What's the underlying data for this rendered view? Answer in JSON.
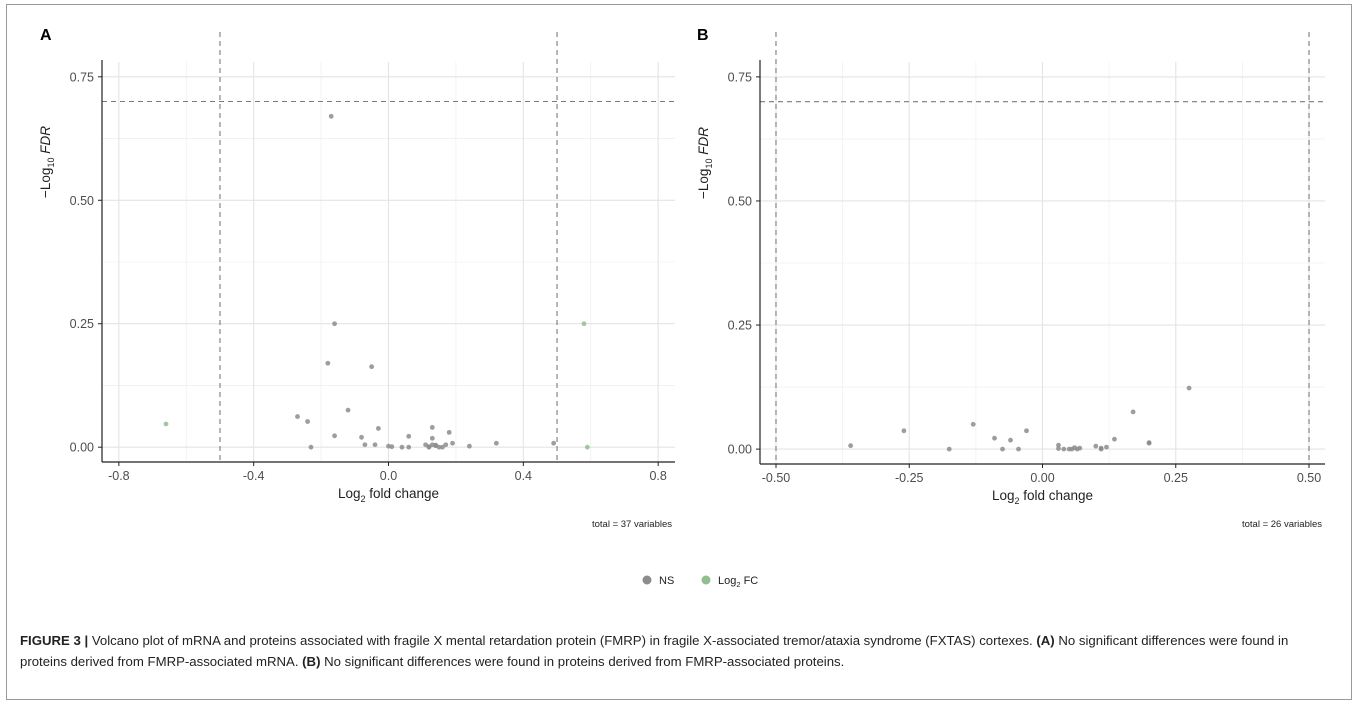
{
  "figure": {
    "caption_label": "FIGURE 3 |",
    "caption_text": " Volcano plot of mRNA and proteins associated with fragile X mental retardation protein (FMRP) in fragile X-associated tremor/ataxia syndrome (FXTAS) cortexes. ",
    "caption_a_label": "(A)",
    "caption_a_text": " No significant differences were found in proteins derived from FMRP-associated mRNA. ",
    "caption_b_label": "(B)",
    "caption_b_text": " No significant differences were found in proteins derived from FMRP-associated proteins."
  },
  "legend": {
    "placement": "bottom-center",
    "entries": [
      {
        "label": "NS",
        "color": "#8c8c8c"
      },
      {
        "label": "Log",
        "sub": "2",
        "suffix": " FC",
        "color": "#8fbf8f"
      }
    ]
  },
  "chart_data": [
    {
      "type": "scatter",
      "panel": "A",
      "title": "",
      "xlabel": "Log",
      "xlabel_sub": "2",
      "xlabel_suffix": " fold change",
      "ylabel_prefix": "−Log",
      "ylabel_sub": "10",
      "ylabel_italic": "FDR",
      "xlim": [
        -0.85,
        0.85
      ],
      "ylim": [
        -0.03,
        0.78
      ],
      "xticks": [
        -0.8,
        -0.4,
        0.0,
        0.4,
        0.8
      ],
      "xtick_labels": [
        "-0.8",
        "-0.4",
        "0.0",
        "0.4",
        "0.8"
      ],
      "yticks": [
        0.0,
        0.25,
        0.5,
        0.75
      ],
      "ytick_labels": [
        "0.00",
        "0.25",
        "0.50",
        "0.75"
      ],
      "grid": true,
      "cutoff_x": [
        -0.5,
        0.5
      ],
      "cutoff_y": 0.7,
      "caption_note": "total = 37 variables",
      "series": [
        {
          "name": "NS",
          "color": "#8c8c8c",
          "points": [
            [
              -0.17,
              0.67
            ],
            [
              -0.16,
              0.25
            ],
            [
              -0.18,
              0.17
            ],
            [
              -0.05,
              0.163
            ],
            [
              -0.27,
              0.062
            ],
            [
              -0.24,
              0.052
            ],
            [
              -0.12,
              0.075
            ],
            [
              -0.03,
              0.038
            ],
            [
              -0.16,
              0.023
            ],
            [
              -0.08,
              0.02
            ],
            [
              -0.23,
              0.0
            ],
            [
              -0.07,
              0.005
            ],
            [
              -0.04,
              0.005
            ],
            [
              0.0,
              0.002
            ],
            [
              0.04,
              0.0
            ],
            [
              0.06,
              0.022
            ],
            [
              0.06,
              0.0
            ],
            [
              0.11,
              0.005
            ],
            [
              0.12,
              0.0
            ],
            [
              0.13,
              0.04
            ],
            [
              0.13,
              0.018
            ],
            [
              0.13,
              0.005
            ],
            [
              0.14,
              0.004
            ],
            [
              0.15,
              0.0
            ],
            [
              0.16,
              0.0
            ],
            [
              0.17,
              0.005
            ],
            [
              0.18,
              0.03
            ],
            [
              0.19,
              0.008
            ],
            [
              0.24,
              0.002
            ],
            [
              0.32,
              0.008
            ],
            [
              0.49,
              0.008
            ],
            [
              0.01,
              0.001
            ],
            [
              0.14,
              0.003
            ],
            [
              0.12,
              0.001
            ]
          ]
        },
        {
          "name": "Log2 FC",
          "color": "#8fbf8f",
          "points": [
            [
              -0.66,
              0.047
            ],
            [
              0.58,
              0.25
            ],
            [
              0.59,
              0.0
            ]
          ]
        }
      ]
    },
    {
      "type": "scatter",
      "panel": "B",
      "title": "",
      "xlabel": "Log",
      "xlabel_sub": "2",
      "xlabel_suffix": " fold change",
      "ylabel_prefix": "−Log",
      "ylabel_sub": "10",
      "ylabel_italic": "FDR",
      "xlim": [
        -0.53,
        0.53
      ],
      "ylim": [
        -0.03,
        0.78
      ],
      "xticks": [
        -0.5,
        -0.25,
        0.0,
        0.25,
        0.5
      ],
      "xtick_labels": [
        "-0.50",
        "-0.25",
        "0.00",
        "0.25",
        "0.50"
      ],
      "yticks": [
        0.0,
        0.25,
        0.5,
        0.75
      ],
      "ytick_labels": [
        "0.00",
        "0.25",
        "0.50",
        "0.75"
      ],
      "grid": true,
      "cutoff_x": [
        -0.5,
        0.5
      ],
      "cutoff_y": 0.7,
      "caption_note": "total = 26 variables",
      "series": [
        {
          "name": "NS",
          "color": "#8c8c8c",
          "points": [
            [
              -0.36,
              0.007
            ],
            [
              -0.26,
              0.037
            ],
            [
              -0.175,
              0.0
            ],
            [
              -0.13,
              0.05
            ],
            [
              -0.09,
              0.022
            ],
            [
              -0.075,
              0.0
            ],
            [
              -0.06,
              0.018
            ],
            [
              -0.045,
              0.0
            ],
            [
              -0.03,
              0.037
            ],
            [
              0.03,
              0.008
            ],
            [
              0.03,
              0.001
            ],
            [
              0.04,
              0.0
            ],
            [
              0.055,
              0.0
            ],
            [
              0.06,
              0.003
            ],
            [
              0.065,
              0.0
            ],
            [
              0.07,
              0.002
            ],
            [
              0.1,
              0.006
            ],
            [
              0.11,
              0.0
            ],
            [
              0.12,
              0.004
            ],
            [
              0.135,
              0.02
            ],
            [
              0.17,
              0.075
            ],
            [
              0.2,
              0.012
            ],
            [
              0.2,
              0.013
            ],
            [
              0.275,
              0.123
            ],
            [
              0.05,
              0.0
            ],
            [
              0.11,
              0.002
            ]
          ]
        }
      ]
    }
  ]
}
